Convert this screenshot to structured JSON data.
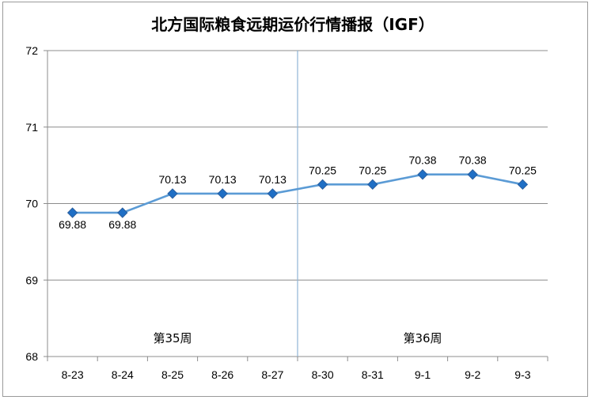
{
  "chart_data": {
    "type": "line",
    "title": "北方国际粮食远期运价行情播报（IGF）",
    "categories": [
      "8-23",
      "8-24",
      "8-25",
      "8-26",
      "8-27",
      "8-30",
      "8-31",
      "9-1",
      "9-2",
      "9-3"
    ],
    "values": [
      69.88,
      69.88,
      70.13,
      70.13,
      70.13,
      70.25,
      70.25,
      70.38,
      70.38,
      70.25
    ],
    "value_labels": [
      "69.88",
      "69.88",
      "70.13",
      "70.13",
      "70.13",
      "70.25",
      "70.25",
      "70.38",
      "70.38",
      "70.25"
    ],
    "ylim": [
      68,
      72
    ],
    "yticks": [
      68,
      69,
      70,
      71,
      72
    ],
    "ytick_labels": [
      "68",
      "69",
      "70",
      "71",
      "72"
    ],
    "grid": true,
    "line_color": "#5B9BD5",
    "marker_color": "#1F6FC5",
    "marker": "diamond",
    "week_separator_after_index": 4,
    "week_labels": [
      "第35周",
      "第36周"
    ]
  }
}
